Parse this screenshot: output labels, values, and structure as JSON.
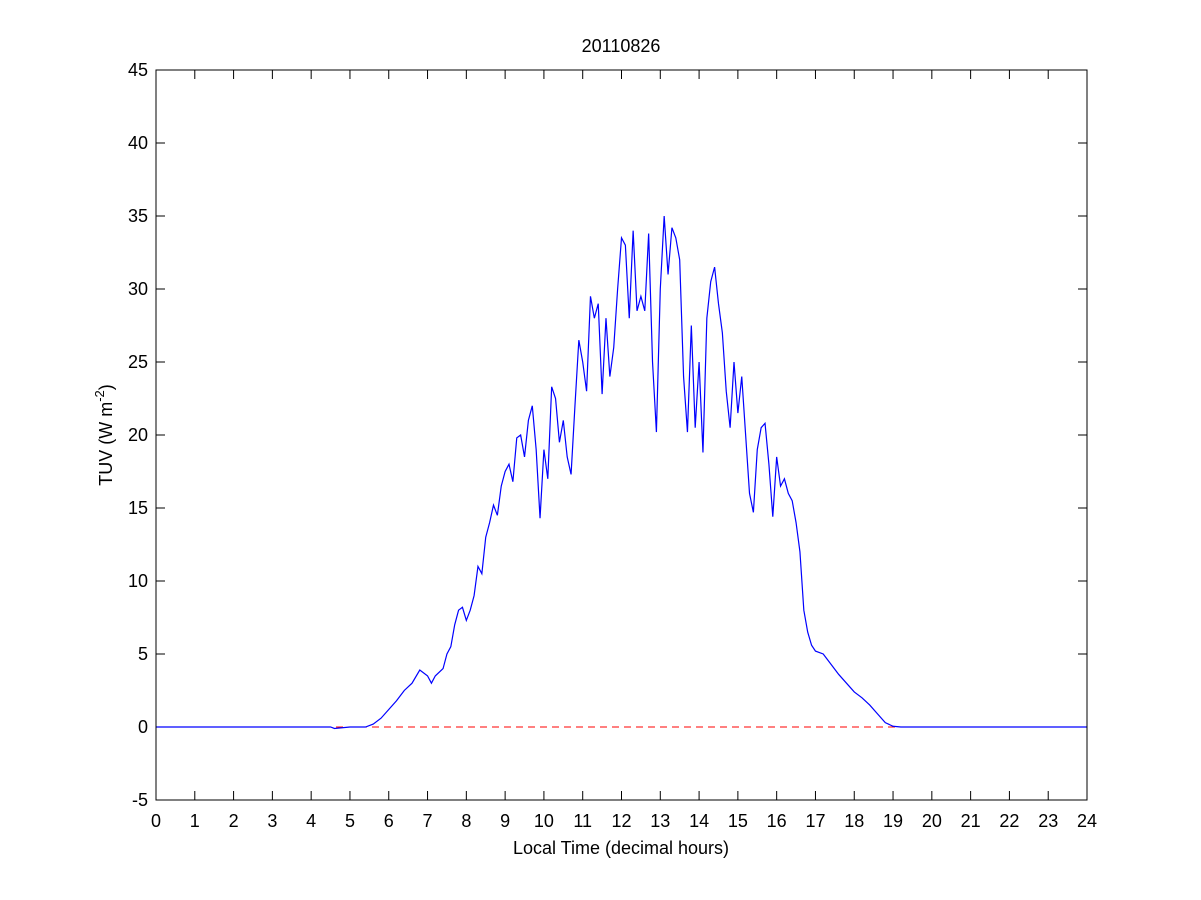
{
  "chart_data": {
    "type": "line",
    "title": "20110826",
    "xlabel": "Local Time (decimal hours)",
    "ylabel": "TUV (W m",
    "ylabel_superscript": "-2",
    "ylabel_end": ")",
    "xlim": [
      0,
      24
    ],
    "xticks": [
      0,
      1,
      2,
      3,
      4,
      5,
      6,
      7,
      8,
      9,
      10,
      11,
      12,
      13,
      14,
      15,
      16,
      17,
      18,
      19,
      20,
      21,
      22,
      23,
      24
    ],
    "ylim": [
      -5,
      45
    ],
    "yticks": [
      -5,
      0,
      5,
      10,
      15,
      20,
      25,
      30,
      35,
      40,
      45
    ],
    "grid": false,
    "reference_line": {
      "value": 0,
      "color": "#ff0000",
      "style": "dashed"
    },
    "series": [
      {
        "color": "#0000ff",
        "x": [
          0,
          4.5,
          4.6,
          5.0,
          5.4,
          5.6,
          5.8,
          6.0,
          6.2,
          6.4,
          6.6,
          6.8,
          7.0,
          7.1,
          7.2,
          7.4,
          7.5,
          7.6,
          7.7,
          7.8,
          7.9,
          8.0,
          8.1,
          8.2,
          8.3,
          8.4,
          8.5,
          8.6,
          8.7,
          8.8,
          8.9,
          9.0,
          9.1,
          9.2,
          9.3,
          9.4,
          9.5,
          9.6,
          9.7,
          9.8,
          9.9,
          10.0,
          10.1,
          10.2,
          10.3,
          10.4,
          10.5,
          10.6,
          10.7,
          10.8,
          10.9,
          11.0,
          11.1,
          11.2,
          11.3,
          11.4,
          11.5,
          11.6,
          11.7,
          11.8,
          11.9,
          12.0,
          12.1,
          12.2,
          12.3,
          12.4,
          12.5,
          12.6,
          12.7,
          12.8,
          12.9,
          13.0,
          13.1,
          13.2,
          13.3,
          13.4,
          13.5,
          13.6,
          13.7,
          13.8,
          13.9,
          14.0,
          14.1,
          14.2,
          14.3,
          14.4,
          14.5,
          14.6,
          14.7,
          14.8,
          14.9,
          15.0,
          15.1,
          15.2,
          15.3,
          15.4,
          15.5,
          15.6,
          15.7,
          15.8,
          15.9,
          16.0,
          16.1,
          16.2,
          16.3,
          16.4,
          16.5,
          16.6,
          16.7,
          16.8,
          16.9,
          17.0,
          17.2,
          17.4,
          17.6,
          17.8,
          18.0,
          18.2,
          18.4,
          18.6,
          18.8,
          19.0,
          19.2,
          24
        ],
        "values": [
          0,
          0,
          -0.1,
          0,
          0,
          0.2,
          0.6,
          1.2,
          1.8,
          2.5,
          3.0,
          3.9,
          3.5,
          3.0,
          3.5,
          4.0,
          5.0,
          5.5,
          7.0,
          8.0,
          8.2,
          7.3,
          8.0,
          9.0,
          11.0,
          10.5,
          13.0,
          14.0,
          15.2,
          14.5,
          16.5,
          17.5,
          18.0,
          16.8,
          19.8,
          20.0,
          18.5,
          21.0,
          22.0,
          19.0,
          14.3,
          19.0,
          17.0,
          23.3,
          22.5,
          19.5,
          21.0,
          18.5,
          17.3,
          22.0,
          26.5,
          25.0,
          23.0,
          29.5,
          28.0,
          29.0,
          22.8,
          28.0,
          24.0,
          26.0,
          30.0,
          33.5,
          33.0,
          28.0,
          34.0,
          28.5,
          29.5,
          28.5,
          33.8,
          25.0,
          20.2,
          30.0,
          35.0,
          31.0,
          34.2,
          33.5,
          32.0,
          24.0,
          20.2,
          27.5,
          20.5,
          25.0,
          18.8,
          28.0,
          30.5,
          31.5,
          29.0,
          27.0,
          23.0,
          20.5,
          25.0,
          21.5,
          24.0,
          20.0,
          16.0,
          14.7,
          19.0,
          20.5,
          20.8,
          18.0,
          14.4,
          18.5,
          16.5,
          17.0,
          16.0,
          15.5,
          14.0,
          12.0,
          8.0,
          6.5,
          5.6,
          5.2,
          5.0,
          4.3,
          3.6,
          3.0,
          2.4,
          2.0,
          1.5,
          0.9,
          0.3,
          0.05,
          0,
          0
        ]
      }
    ]
  }
}
